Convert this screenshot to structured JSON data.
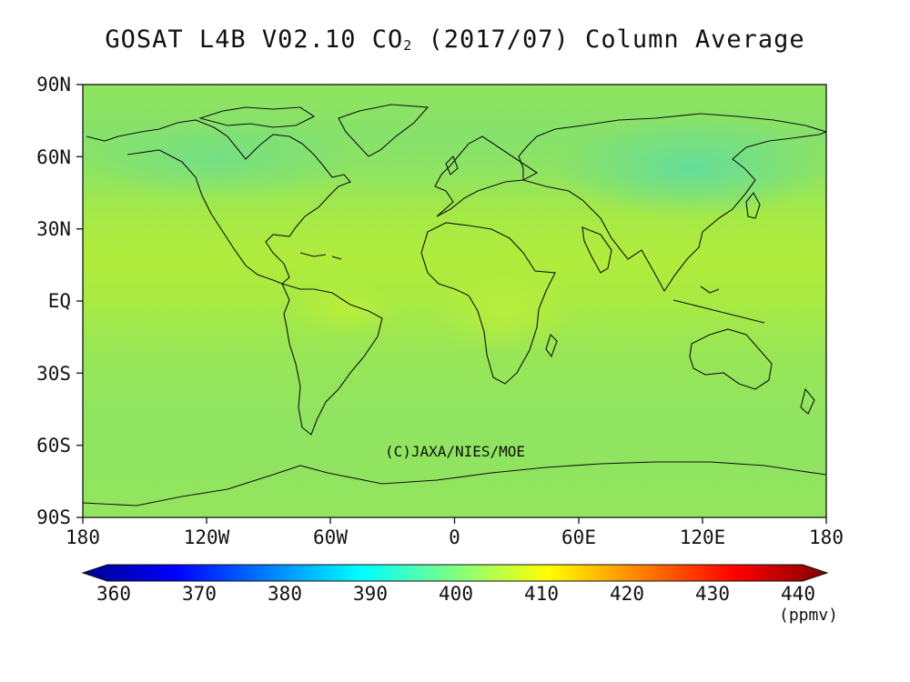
{
  "title": {
    "prefix": "GOSAT L4B V02.10 CO",
    "subscript": "2",
    "suffix": " (2017/07) Column Average"
  },
  "map": {
    "projection": "equirectangular",
    "lat_ticks": [
      "90N",
      "60N",
      "30N",
      "EQ",
      "30S",
      "60S",
      "90S"
    ],
    "lon_ticks": [
      "180",
      "120W",
      "60W",
      "0",
      "60E",
      "120E",
      "180"
    ],
    "credit": "(C)JAXA/NIES/MOE",
    "field_description_colors": {
      "background": "#93e55a",
      "tropical_band": "#b0ec3d",
      "northern_high_lat": "#7ee37a",
      "siberia_min": "#62dd9c"
    }
  },
  "colorbar": {
    "ticks": [
      "360",
      "370",
      "380",
      "390",
      "400",
      "410",
      "420",
      "430",
      "440"
    ],
    "min": 360,
    "max": 440,
    "units": "(ppmv)",
    "colormap": [
      "#00008f",
      "#0000ff",
      "#0080ff",
      "#00ffff",
      "#80ff80",
      "#ffff00",
      "#ff8000",
      "#ff0000",
      "#800000"
    ]
  }
}
